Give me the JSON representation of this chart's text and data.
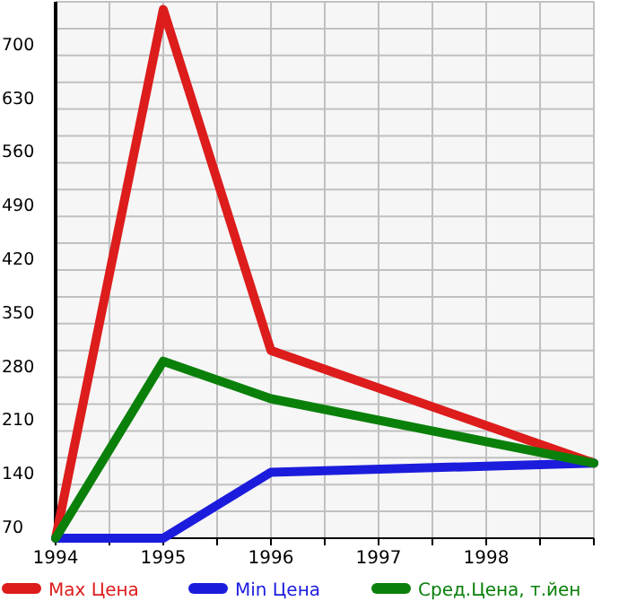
{
  "chart_data": {
    "type": "line",
    "x": [
      1994,
      1995,
      1996,
      1999
    ],
    "series": [
      {
        "name": "Max Цена",
        "color": "#dd1c1c",
        "values": [
          70,
          760,
          315,
          168
        ]
      },
      {
        "name": "Min Цена",
        "color": "#1c1cdd",
        "values": [
          70,
          70,
          156,
          168
        ]
      },
      {
        "name": "Сред.Цена, т.йен",
        "color": "#0a800a",
        "values": [
          70,
          301,
          252,
          168
        ]
      }
    ],
    "xlim": [
      1994,
      1999
    ],
    "xticks": [
      1994,
      {
        "value": 1994.5,
        "label": null
      },
      1995,
      {
        "value": 1995.5,
        "label": null
      },
      1996,
      {
        "value": 1996.5,
        "label": null
      },
      1997,
      {
        "value": 1997.5,
        "label": null
      },
      1998,
      {
        "value": 1998.5,
        "label": null
      },
      {
        "value": 1999,
        "label": null
      }
    ],
    "ylim": [
      70,
      770
    ],
    "yticks": [
      70,
      {
        "value": 105,
        "label": null
      },
      140,
      {
        "value": 175,
        "label": null
      },
      210,
      {
        "value": 245,
        "label": null
      },
      280,
      {
        "value": 315,
        "label": null
      },
      350,
      {
        "value": 385,
        "label": null
      },
      420,
      {
        "value": 455,
        "label": null
      },
      490,
      {
        "value": 525,
        "label": null
      },
      560,
      {
        "value": 595,
        "label": null
      },
      630,
      {
        "value": 665,
        "label": null
      },
      700,
      {
        "value": 735,
        "label": null
      },
      {
        "value": 770,
        "label": null
      }
    ],
    "grid": true,
    "legend": "bottom",
    "marker": "none",
    "line_style": "solid"
  }
}
